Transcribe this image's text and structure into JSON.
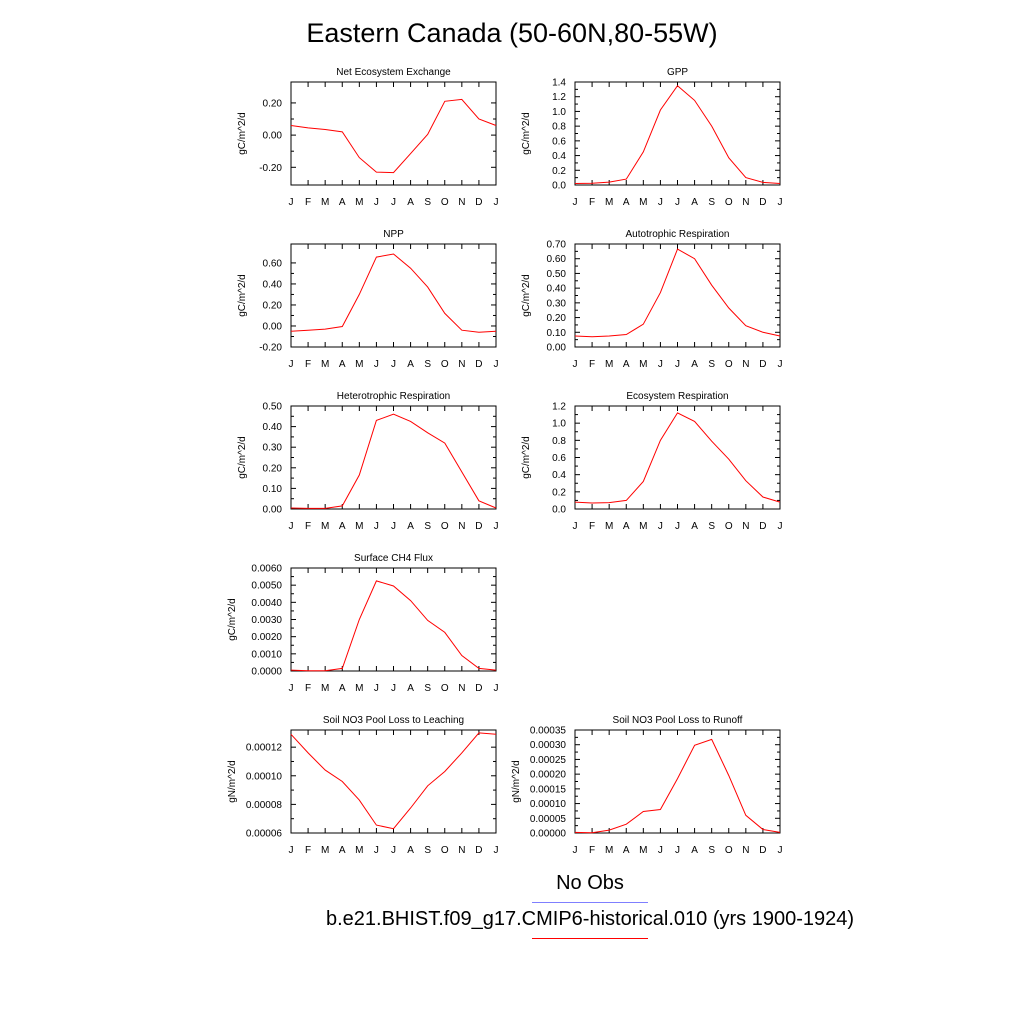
{
  "figure_title": "Eastern Canada (50-60N,80-55W)",
  "legend": {
    "obs_label": "No Obs",
    "obs_color": "#7f7fff",
    "model_label": "b.e21.BHIST.f09_g17.CMIP6-historical.010 (yrs 1900-1924)",
    "model_color": "#ff0000"
  },
  "chart_data": [
    {
      "type": "line",
      "title": "Net Ecosystem Exchange",
      "ylabel": "gC/m^2/d",
      "categories": [
        "J",
        "F",
        "M",
        "A",
        "M",
        "J",
        "J",
        "A",
        "S",
        "O",
        "N",
        "D",
        "J"
      ],
      "yticks": [
        "0.20",
        "0.00",
        "-0.20"
      ],
      "ytick_values": [
        0.2,
        0.0,
        -0.2
      ],
      "ylim": [
        -0.31,
        0.33
      ],
      "series": [
        {
          "values": [
            0.06,
            0.045,
            0.035,
            0.02,
            -0.14,
            -0.23,
            -0.233,
            -0.115,
            0.005,
            0.21,
            0.222,
            0.1,
            0.06
          ],
          "color": "#ff0000"
        }
      ]
    },
    {
      "type": "line",
      "title": "GPP",
      "ylabel": "gC/m^2/d",
      "categories": [
        "J",
        "F",
        "M",
        "A",
        "M",
        "J",
        "J",
        "A",
        "S",
        "O",
        "N",
        "D",
        "J"
      ],
      "yticks": [
        "1.4",
        "1.2",
        "1.0",
        "0.8",
        "0.6",
        "0.4",
        "0.2",
        "0.0"
      ],
      "ytick_values": [
        1.4,
        1.2,
        1.0,
        0.8,
        0.6,
        0.4,
        0.2,
        0.0
      ],
      "ylim": [
        0.0,
        1.4
      ],
      "series": [
        {
          "values": [
            0.02,
            0.025,
            0.04,
            0.08,
            0.45,
            1.02,
            1.35,
            1.15,
            0.8,
            0.37,
            0.1,
            0.035,
            0.02
          ],
          "color": "#ff0000"
        }
      ]
    },
    {
      "type": "line",
      "title": "NPP",
      "ylabel": "gC/m^2/d",
      "categories": [
        "J",
        "F",
        "M",
        "A",
        "M",
        "J",
        "J",
        "A",
        "S",
        "O",
        "N",
        "D",
        "J"
      ],
      "yticks": [
        "0.60",
        "0.40",
        "0.20",
        "0.00",
        "-0.20"
      ],
      "ytick_values": [
        0.6,
        0.4,
        0.2,
        0.0,
        -0.2
      ],
      "ylim": [
        -0.2,
        0.78
      ],
      "series": [
        {
          "values": [
            -0.05,
            -0.04,
            -0.03,
            -0.005,
            0.3,
            0.655,
            0.685,
            0.55,
            0.37,
            0.12,
            -0.04,
            -0.06,
            -0.05
          ],
          "color": "#ff0000"
        }
      ]
    },
    {
      "type": "line",
      "title": "Autotrophic Respiration",
      "ylabel": "gC/m^2/d",
      "categories": [
        "J",
        "F",
        "M",
        "A",
        "M",
        "J",
        "J",
        "A",
        "S",
        "O",
        "N",
        "D",
        "J"
      ],
      "yticks": [
        "0.70",
        "0.60",
        "0.50",
        "0.40",
        "0.30",
        "0.20",
        "0.10",
        "0.00"
      ],
      "ytick_values": [
        0.7,
        0.6,
        0.5,
        0.4,
        0.3,
        0.2,
        0.1,
        0.0
      ],
      "ylim": [
        0.0,
        0.7
      ],
      "series": [
        {
          "values": [
            0.075,
            0.07,
            0.075,
            0.085,
            0.155,
            0.37,
            0.665,
            0.6,
            0.42,
            0.265,
            0.145,
            0.1,
            0.075
          ],
          "color": "#ff0000"
        }
      ]
    },
    {
      "type": "line",
      "title": "Heterotrophic Respiration",
      "ylabel": "gC/m^2/d",
      "categories": [
        "J",
        "F",
        "M",
        "A",
        "M",
        "J",
        "J",
        "A",
        "S",
        "O",
        "N",
        "D",
        "J"
      ],
      "yticks": [
        "0.50",
        "0.40",
        "0.30",
        "0.20",
        "0.10",
        "0.00"
      ],
      "ytick_values": [
        0.5,
        0.4,
        0.3,
        0.2,
        0.1,
        0.0
      ],
      "ylim": [
        0.0,
        0.5
      ],
      "series": [
        {
          "values": [
            0.005,
            0.003,
            0.003,
            0.015,
            0.165,
            0.43,
            0.46,
            0.425,
            0.37,
            0.32,
            0.18,
            0.04,
            0.005
          ],
          "color": "#ff0000"
        }
      ]
    },
    {
      "type": "line",
      "title": "Ecosystem Respiration",
      "ylabel": "gC/m^2/d",
      "categories": [
        "J",
        "F",
        "M",
        "A",
        "M",
        "J",
        "J",
        "A",
        "S",
        "O",
        "N",
        "D",
        "J"
      ],
      "yticks": [
        "1.2",
        "1.0",
        "0.8",
        "0.6",
        "0.4",
        "0.2",
        "0.0"
      ],
      "ytick_values": [
        1.2,
        1.0,
        0.8,
        0.6,
        0.4,
        0.2,
        0.0
      ],
      "ylim": [
        0.0,
        1.2
      ],
      "series": [
        {
          "values": [
            0.08,
            0.07,
            0.075,
            0.1,
            0.32,
            0.8,
            1.12,
            1.02,
            0.79,
            0.58,
            0.33,
            0.14,
            0.08
          ],
          "color": "#ff0000"
        }
      ]
    },
    {
      "type": "line",
      "title": "Surface CH4 Flux",
      "ylabel": "gC/m^2/d",
      "categories": [
        "J",
        "F",
        "M",
        "A",
        "M",
        "J",
        "J",
        "A",
        "S",
        "O",
        "N",
        "D",
        "J"
      ],
      "yticks": [
        "0.0060",
        "0.0050",
        "0.0040",
        "0.0030",
        "0.0020",
        "0.0010",
        "0.0000"
      ],
      "ytick_values": [
        0.006,
        0.005,
        0.004,
        0.003,
        0.002,
        0.001,
        0.0
      ],
      "ylim": [
        0.0,
        0.006
      ],
      "series": [
        {
          "values": [
            5e-05,
            2e-05,
            2e-05,
            0.00015,
            0.003,
            0.00525,
            0.00495,
            0.0041,
            0.00295,
            0.00225,
            0.0009,
            0.00015,
            5e-05
          ],
          "color": "#ff0000"
        }
      ]
    },
    {
      "type": "line",
      "title": "Soil NO3 Pool Loss to Leaching",
      "ylabel": "gN/m^2/d",
      "categories": [
        "J",
        "F",
        "M",
        "A",
        "M",
        "J",
        "J",
        "A",
        "S",
        "O",
        "N",
        "D",
        "J"
      ],
      "yticks": [
        "0.00012",
        "0.00010",
        "0.00008",
        "0.00006"
      ],
      "ytick_values": [
        0.00012,
        0.0001,
        8e-05,
        6e-05
      ],
      "ylim": [
        6e-05,
        0.000132
      ],
      "series": [
        {
          "values": [
            0.000129,
            0.000116,
            0.000104,
            9.6e-05,
            8.3e-05,
            6.55e-05,
            6.3e-05,
            7.75e-05,
            9.3e-05,
            0.000103,
            0.000116,
            0.00013,
            0.000129
          ],
          "color": "#ff0000"
        }
      ]
    },
    {
      "type": "line",
      "title": "Soil NO3 Pool Loss to Runoff",
      "ylabel": "gN/m^2/d",
      "categories": [
        "J",
        "F",
        "M",
        "A",
        "M",
        "J",
        "J",
        "A",
        "S",
        "O",
        "N",
        "D",
        "J"
      ],
      "yticks": [
        "0.00035",
        "0.00030",
        "0.00025",
        "0.00020",
        "0.00015",
        "0.00010",
        "0.00005",
        "0.00000"
      ],
      "ytick_values": [
        0.00035,
        0.0003,
        0.00025,
        0.0002,
        0.00015,
        0.0001,
        5e-05,
        0.0
      ],
      "ylim": [
        0.0,
        0.00035
      ],
      "series": [
        {
          "values": [
            2e-06,
            1e-06,
            1e-05,
            3e-05,
            7.3e-05,
            8e-05,
            0.000185,
            0.000298,
            0.000318,
            0.000195,
            6e-05,
            1.2e-05,
            2e-06
          ],
          "color": "#ff0000"
        }
      ]
    }
  ]
}
